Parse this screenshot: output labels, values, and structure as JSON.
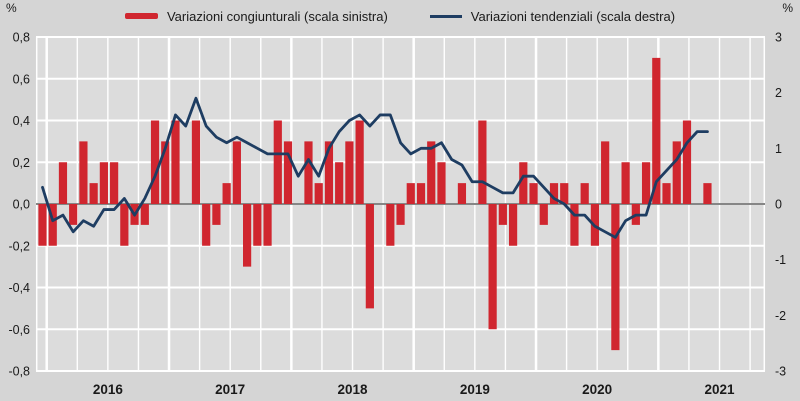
{
  "legend": {
    "bar_series_label": "Variazioni congiunturali (scala sinistra)",
    "line_series_label": "Variazioni tendenziali (scala destra)"
  },
  "axis_unit_left": "%",
  "axis_unit_right": "%",
  "colors": {
    "bar": "#d0262f",
    "line": "#1e3d62",
    "plot_bg": "#dcdcdc",
    "outer_bg": "#d5d5d5",
    "gridline": "#ffffff",
    "zero_line": "#3f3f3f",
    "text": "#1a1a1a"
  },
  "chart_data": {
    "type": "bar+line",
    "frequency": "monthly",
    "start_month": "2016-01",
    "end_month": "2021-06",
    "x_year_labels": [
      "2016",
      "2017",
      "2018",
      "2019",
      "2020",
      "2021"
    ],
    "left_axis": {
      "label": "%",
      "ticks": [
        "0,8",
        "0,6",
        "0,4",
        "0,2",
        "0,0",
        "-0,2",
        "-0,4",
        "-0,6",
        "-0,8"
      ],
      "range": [
        -0.8,
        0.8
      ],
      "grid": "on"
    },
    "right_axis": {
      "label": "%",
      "ticks": [
        "3",
        "2",
        "1",
        "0",
        "-1",
        "-2",
        "-3"
      ],
      "range": [
        -3,
        3
      ]
    },
    "legend_position": "top-center",
    "series": [
      {
        "name": "Variazioni congiunturali (scala sinistra)",
        "type": "bar",
        "axis": "left",
        "values": [
          -0.2,
          -0.2,
          0.2,
          -0.1,
          0.3,
          0.1,
          0.2,
          0.2,
          -0.2,
          -0.1,
          -0.1,
          0.4,
          0.3,
          0.4,
          0.0,
          0.4,
          -0.2,
          -0.1,
          0.1,
          0.3,
          -0.3,
          -0.2,
          -0.2,
          0.4,
          0.3,
          0.0,
          0.3,
          0.1,
          0.3,
          0.2,
          0.3,
          0.4,
          -0.5,
          0.0,
          -0.2,
          -0.1,
          0.1,
          0.1,
          0.3,
          0.2,
          0.0,
          0.1,
          0.0,
          0.4,
          -0.6,
          -0.1,
          -0.2,
          0.2,
          0.1,
          -0.1,
          0.1,
          0.1,
          -0.2,
          0.1,
          -0.2,
          0.3,
          -0.7,
          0.2,
          -0.1,
          0.2,
          0.7,
          0.1,
          0.3,
          0.4,
          0.0,
          0.1
        ]
      },
      {
        "name": "Variazioni tendenziali (scala destra)",
        "type": "line",
        "axis": "right",
        "values": [
          0.3,
          -0.3,
          -0.2,
          -0.5,
          -0.3,
          -0.4,
          -0.1,
          -0.1,
          0.1,
          -0.2,
          0.1,
          0.5,
          1.0,
          1.6,
          1.4,
          1.9,
          1.4,
          1.2,
          1.1,
          1.2,
          1.1,
          1.0,
          0.9,
          0.9,
          0.9,
          0.5,
          0.8,
          0.5,
          1.0,
          1.3,
          1.5,
          1.6,
          1.4,
          1.6,
          1.6,
          1.1,
          0.9,
          1.0,
          1.0,
          1.1,
          0.8,
          0.7,
          0.4,
          0.4,
          0.3,
          0.2,
          0.2,
          0.5,
          0.5,
          0.3,
          0.1,
          0.0,
          -0.2,
          -0.2,
          -0.4,
          -0.5,
          -0.6,
          -0.3,
          -0.2,
          -0.2,
          0.4,
          0.6,
          0.8,
          1.1,
          1.3,
          1.3
        ]
      }
    ]
  }
}
